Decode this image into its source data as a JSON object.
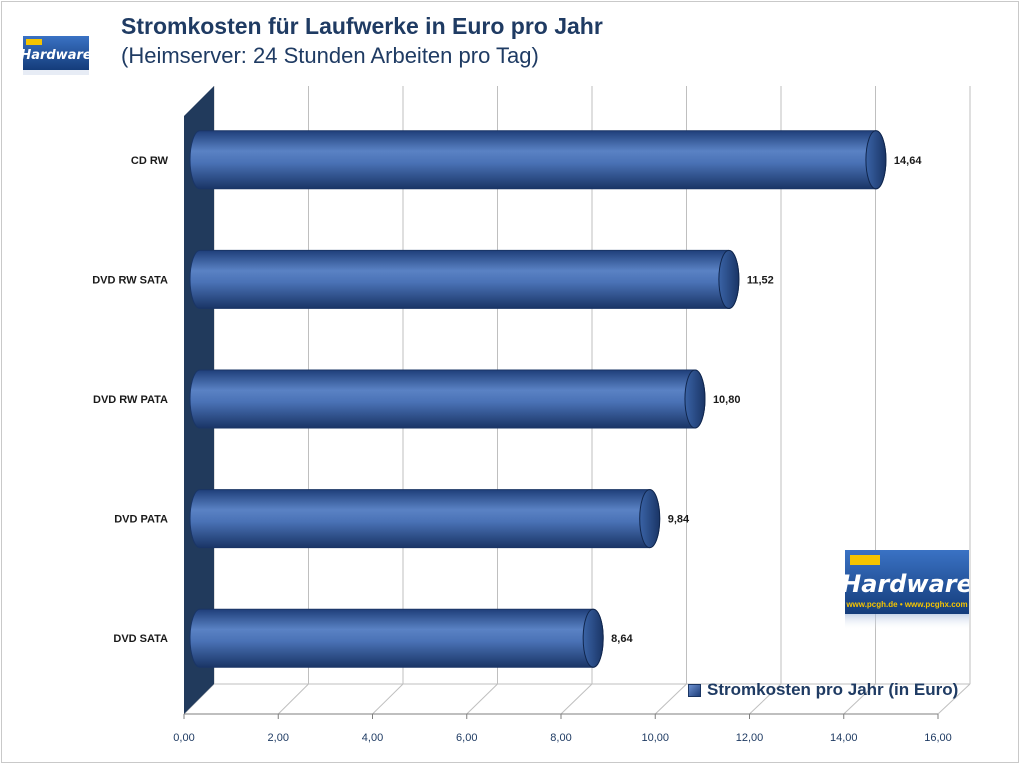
{
  "header": {
    "title": "Stromkosten für Laufwerke in Euro pro Jahr",
    "subtitle": "(Heimserver: 24 Stunden Arbeiten pro Tag)"
  },
  "logo": {
    "brand": "Hardware",
    "url_text": "www.pcgh.de • www.pcghx.com",
    "colors": {
      "bg": "#1c4e9b",
      "accent": "#f5c400"
    }
  },
  "legend": {
    "label": "Stromkosten pro Jahr (in Euro)",
    "position": "bottom-right"
  },
  "colors": {
    "bar": "#3a63a6",
    "bar_dark": "#1f3f7a",
    "wall": "#213a5c",
    "grid": "#bfbfbf"
  },
  "chart_data": {
    "type": "bar",
    "orientation": "horizontal",
    "title": "Stromkosten für Laufwerke in Euro pro Jahr",
    "subtitle": "(Heimserver: 24 Stunden Arbeiten pro Tag)",
    "categories": [
      "CD RW",
      "DVD RW SATA",
      "DVD RW PATA",
      "DVD PATA",
      "DVD SATA"
    ],
    "series": [
      {
        "name": "Stromkosten pro Jahr (in Euro)",
        "values": [
          14.64,
          11.52,
          10.8,
          9.84,
          8.64
        ]
      }
    ],
    "value_labels": [
      "14,64",
      "11,52",
      "10,80",
      "9,84",
      "8,64"
    ],
    "xlim": [
      0,
      16
    ],
    "xticks": [
      0,
      2,
      4,
      6,
      8,
      10,
      12,
      14,
      16
    ],
    "xtick_labels": [
      "0,00",
      "2,00",
      "4,00",
      "6,00",
      "8,00",
      "10,00",
      "12,00",
      "14,00",
      "16,00"
    ],
    "grid": true,
    "legend_position": "bottom-right"
  }
}
